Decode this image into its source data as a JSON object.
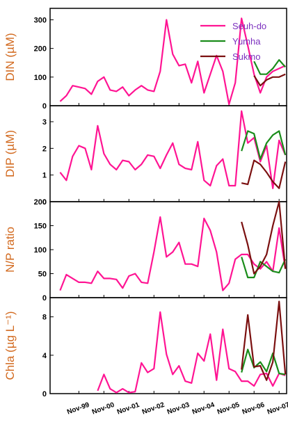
{
  "x_categories": [
    "Nov-99",
    "Nov-00",
    "Nov-01",
    "Nov-02",
    "Nov-03",
    "Nov-04",
    "Nov-05",
    "Nov-06",
    "Nov-07"
  ],
  "colors": {
    "Seuh-do": "#ff1493",
    "Yumha": "#1a8c1a",
    "Sukmo": "#7b1010",
    "axis": "#000000",
    "label": "#d2691e",
    "legend_text": "#7b2fbe"
  },
  "legend": [
    {
      "name": "Seuh-do",
      "color": "#ff1493"
    },
    {
      "name": "Yumha",
      "color": "#1a8c1a"
    },
    {
      "name": "Sukmo",
      "color": "#7b1010"
    }
  ],
  "chart_data": [
    {
      "type": "line",
      "ylabel": "DIN (µM)",
      "ylim": [
        0,
        340
      ],
      "yticks": [
        0,
        100,
        200,
        300
      ],
      "series": [
        {
          "name": "Seuh-do",
          "color": "#ff1493",
          "x": [
            1998.9,
            1999.15,
            1999.4,
            1999.65,
            1999.9,
            2000.15,
            2000.4,
            2000.65,
            2000.9,
            2001.15,
            2001.4,
            2001.65,
            2001.9,
            2002.15,
            2002.4,
            2002.65,
            2002.9,
            2003.15,
            2003.4,
            2003.65,
            2003.9,
            2004.15,
            2004.4,
            2004.65,
            2004.9,
            2005.15,
            2005.4,
            2005.65,
            2005.9,
            2006.15,
            2006.4,
            2006.65,
            2006.9,
            2007.15,
            2007.4,
            2007.65,
            2007.9
          ],
          "y": [
            15,
            35,
            70,
            65,
            60,
            40,
            85,
            100,
            55,
            50,
            65,
            35,
            55,
            70,
            55,
            50,
            120,
            300,
            180,
            140,
            145,
            80,
            155,
            45,
            110,
            175,
            120,
            5,
            80,
            305,
            210,
            110,
            45,
            100,
            120,
            130,
            140
          ]
        },
        {
          "name": "Yumha",
          "color": "#1a8c1a",
          "x": [
            2006.65,
            2006.9,
            2007.15,
            2007.4,
            2007.65,
            2007.9
          ],
          "y": [
            155,
            110,
            110,
            130,
            160,
            135
          ]
        },
        {
          "name": "Sukmo",
          "color": "#7b1010",
          "x": [
            2006.65,
            2006.9,
            2007.15,
            2007.4,
            2007.65,
            2007.9
          ],
          "y": [
            105,
            70,
            90,
            100,
            100,
            110
          ]
        }
      ]
    },
    {
      "type": "line",
      "ylabel": "DIP (µM)",
      "ylim": [
        0,
        3.6
      ],
      "yticks": [
        0,
        1,
        2,
        3
      ],
      "series": [
        {
          "name": "Seuh-do",
          "color": "#ff1493",
          "x": [
            1998.9,
            1999.15,
            1999.4,
            1999.65,
            1999.9,
            2000.15,
            2000.4,
            2000.65,
            2000.9,
            2001.15,
            2001.4,
            2001.65,
            2001.9,
            2002.15,
            2002.4,
            2002.65,
            2002.9,
            2003.15,
            2003.4,
            2003.65,
            2003.9,
            2004.15,
            2004.4,
            2004.65,
            2004.9,
            2005.15,
            2005.4,
            2005.65,
            2005.9,
            2006.15,
            2006.4,
            2006.65,
            2006.9,
            2007.15,
            2007.4,
            2007.65,
            2007.9
          ],
          "y": [
            1.1,
            0.8,
            1.7,
            2.1,
            2.0,
            1.2,
            2.85,
            1.8,
            1.4,
            1.2,
            1.55,
            1.5,
            1.2,
            1.4,
            1.75,
            1.7,
            1.25,
            1.75,
            2.2,
            1.4,
            1.25,
            1.2,
            2.25,
            0.8,
            0.6,
            1.35,
            1.6,
            0.6,
            0.6,
            3.4,
            2.2,
            2.4,
            1.5,
            2.1,
            0.5,
            2.3,
            1.75
          ]
        },
        {
          "name": "Yumha",
          "color": "#1a8c1a",
          "x": [
            2006.15,
            2006.4,
            2006.65,
            2006.9,
            2007.15,
            2007.4,
            2007.65,
            2007.9
          ],
          "y": [
            1.9,
            2.65,
            2.55,
            1.6,
            2.2,
            2.5,
            2.65,
            1.75
          ]
        },
        {
          "name": "Sukmo",
          "color": "#7b1010",
          "x": [
            2006.15,
            2006.4,
            2006.65,
            2006.9,
            2007.15,
            2007.4,
            2007.65,
            2007.9
          ],
          "y": [
            0.7,
            0.65,
            1.55,
            1.4,
            1.1,
            0.75,
            0.5,
            1.5
          ]
        }
      ]
    },
    {
      "type": "line",
      "ylabel": "N/P ratio",
      "ylim": [
        0,
        200
      ],
      "yticks": [
        0,
        50,
        100,
        150,
        200
      ],
      "series": [
        {
          "name": "Seuh-do",
          "color": "#ff1493",
          "x": [
            1998.9,
            1999.15,
            1999.4,
            1999.65,
            1999.9,
            2000.15,
            2000.4,
            2000.65,
            2000.9,
            2001.15,
            2001.4,
            2001.65,
            2001.9,
            2002.15,
            2002.4,
            2002.65,
            2002.9,
            2003.15,
            2003.4,
            2003.65,
            2003.9,
            2004.15,
            2004.4,
            2004.65,
            2004.9,
            2005.15,
            2005.4,
            2005.65,
            2005.9,
            2006.15,
            2006.4,
            2006.65,
            2006.9,
            2007.15,
            2007.4,
            2007.65,
            2007.9
          ],
          "y": [
            15,
            48,
            40,
            32,
            32,
            30,
            55,
            40,
            40,
            38,
            20,
            45,
            50,
            32,
            30,
            95,
            168,
            85,
            95,
            115,
            70,
            70,
            65,
            165,
            140,
            95,
            15,
            30,
            80,
            90,
            90,
            70,
            60,
            75,
            55,
            145,
            60
          ]
        },
        {
          "name": "Yumha",
          "color": "#1a8c1a",
          "x": [
            2006.15,
            2006.4,
            2006.65,
            2006.9,
            2007.15,
            2007.4,
            2007.65,
            2007.9
          ],
          "y": [
            85,
            42,
            42,
            75,
            65,
            55,
            52,
            80
          ]
        },
        {
          "name": "Sukmo",
          "color": "#7b1010",
          "x": [
            2006.15,
            2006.4,
            2006.65,
            2006.9,
            2007.15,
            2007.4,
            2007.65,
            2007.9
          ],
          "y": [
            158,
            110,
            50,
            65,
            90,
            150,
            200,
            60
          ]
        }
      ]
    },
    {
      "type": "line",
      "ylabel": "Chla (µg L⁻¹)",
      "ylim": [
        0,
        10
      ],
      "yticks": [
        0,
        4,
        8
      ],
      "series": [
        {
          "name": "Seuh-do",
          "color": "#ff1493",
          "x": [
            2000.4,
            2000.65,
            2000.9,
            2001.15,
            2001.4,
            2001.65,
            2001.9,
            2002.15,
            2002.4,
            2002.65,
            2002.9,
            2003.15,
            2003.4,
            2003.65,
            2003.9,
            2004.15,
            2004.4,
            2004.65,
            2004.9,
            2005.15,
            2005.4,
            2005.65,
            2005.9,
            2006.15,
            2006.4,
            2006.65,
            2006.9,
            2007.15,
            2007.4,
            2007.65,
            2007.9
          ],
          "y": [
            0.3,
            2.0,
            0.5,
            0.1,
            0.5,
            0.1,
            0.2,
            3.2,
            2.2,
            2.6,
            8.5,
            4.1,
            2.0,
            2.9,
            1.3,
            1.1,
            4.2,
            3.4,
            6.2,
            1.4,
            6.7,
            2.6,
            2.3,
            1.3,
            1.3,
            0.8,
            2.0,
            2.1,
            0.8,
            2.1,
            1.9
          ]
        },
        {
          "name": "Yumha",
          "color": "#1a8c1a",
          "x": [
            2006.15,
            2006.4,
            2006.65,
            2006.9,
            2007.15,
            2007.4,
            2007.65,
            2007.9
          ],
          "y": [
            2.2,
            4.6,
            2.7,
            3.3,
            2.3,
            4.2,
            2.1,
            2.0
          ]
        },
        {
          "name": "Sukmo",
          "color": "#7b1010",
          "x": [
            2006.15,
            2006.4,
            2006.65,
            2006.9,
            2007.15,
            2007.4,
            2007.65,
            2007.9
          ],
          "y": [
            2.5,
            8.2,
            2.8,
            2.9,
            1.4,
            3.3,
            9.6,
            2.0
          ]
        }
      ]
    }
  ]
}
